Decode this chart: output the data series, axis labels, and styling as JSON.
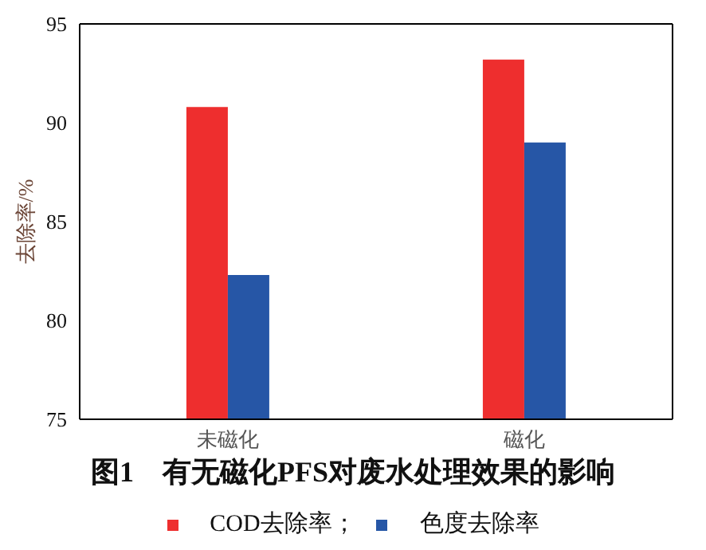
{
  "chart_data": {
    "type": "bar",
    "title": "图1　有无磁化PFS对废水处理效果的影响",
    "ylabel": "去除率/%",
    "categories": [
      "未磁化",
      "磁化"
    ],
    "series": [
      {
        "name": "COD去除率；",
        "color": "#ee2e2e",
        "values": [
          90.8,
          93.2
        ]
      },
      {
        "name": "色度去除率",
        "color": "#2656a6",
        "values": [
          82.3,
          89.0
        ]
      }
    ],
    "ylim": [
      75,
      95
    ],
    "yticks": [
      75,
      80,
      85,
      90,
      95
    ],
    "legend": "bottom"
  }
}
